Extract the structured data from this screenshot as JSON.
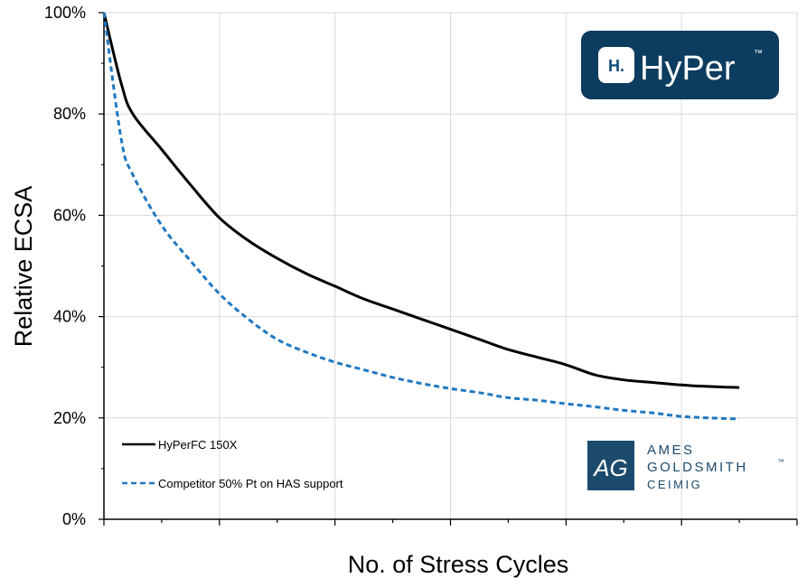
{
  "chart_data": {
    "type": "line",
    "title": "",
    "xlabel": "No. of Stress Cycles",
    "ylabel": "Relative ECSA",
    "x": [
      0,
      0.3,
      0.5,
      1,
      1.5,
      2,
      2.5,
      3,
      3.5,
      4,
      4.5,
      5,
      5.5,
      6,
      6.5,
      7,
      7.5,
      8,
      8.5,
      9,
      9.5,
      10,
      10.5,
      11
    ],
    "xlim": [
      0,
      12
    ],
    "ylim": [
      0,
      100
    ],
    "y_ticks": [
      "0%",
      "20%",
      "40%",
      "60%",
      "80%",
      "100%"
    ],
    "y_tick_values": [
      0,
      20,
      40,
      60,
      80,
      100
    ],
    "x_ticks_labeled": false,
    "grid": true,
    "legend_position": "bottom-left",
    "series": [
      {
        "name": "HyPerFC 150X",
        "color": "#000000",
        "dash": "solid",
        "values": [
          100,
          86,
          80,
          73,
          66,
          59.5,
          55,
          51.5,
          48.5,
          46,
          43.5,
          41.5,
          39.5,
          37.5,
          35.5,
          33.5,
          32,
          30.5,
          28.5,
          27.5,
          27,
          26.5,
          26.2,
          26
        ]
      },
      {
        "name": "Competitor 50% Pt on HAS support",
        "color": "#1f78c1",
        "dash": "dashed",
        "values": [
          100,
          75,
          68,
          58,
          51,
          44.5,
          39.5,
          35.5,
          33,
          31,
          29.5,
          28,
          26.8,
          25.8,
          25,
          24,
          23.5,
          22.8,
          22.2,
          21.5,
          21,
          20.3,
          20,
          19.8
        ]
      }
    ]
  },
  "logos": {
    "hyper": {
      "text": "HyPer",
      "trademark": "™",
      "mark": "H.",
      "bg_color": "#0c3c5f",
      "icon_color": "#ffffff",
      "mark_color": "#0f4c74"
    },
    "ames": {
      "monogram": "AG",
      "line1": "AMES",
      "line2": "GOLDSMITH",
      "trademark": "™",
      "line3": "CEIMIG",
      "color": "#1c4a6c"
    }
  }
}
